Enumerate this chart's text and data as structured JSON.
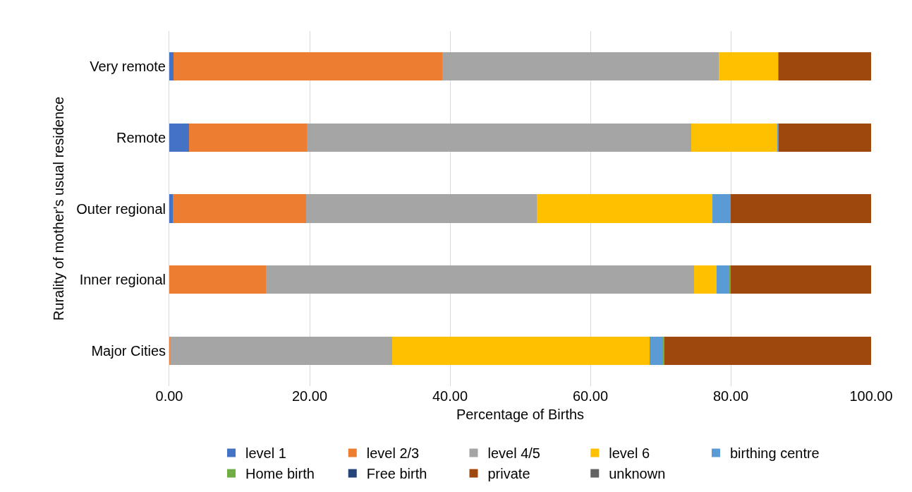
{
  "chart_data": {
    "type": "bar",
    "orientation": "horizontal",
    "stacked": true,
    "xlabel": "Percentage of Births",
    "ylabel": "Rurality of mother's usual residence",
    "categories": [
      "Very remote",
      "Remote",
      "Outer regional",
      "Inner regional",
      "Major Cities"
    ],
    "series": [
      {
        "name": "level 1",
        "color": "#4472c4",
        "values": [
          0.6,
          2.8,
          0.5,
          0,
          0
        ]
      },
      {
        "name": "level 2/3",
        "color": "#ed7d31",
        "values": [
          38.3,
          16.8,
          19.0,
          13.8,
          0.1
        ]
      },
      {
        "name": "level 4/5",
        "color": "#a5a5a5",
        "values": [
          39.4,
          54.8,
          32.9,
          61.0,
          31.7
        ]
      },
      {
        "name": "level 6",
        "color": "#ffc000",
        "values": [
          8.4,
          12.2,
          25.0,
          3.2,
          36.6
        ]
      },
      {
        "name": "birthing centre",
        "color": "#5b9bd5",
        "values": [
          0.1,
          0.2,
          2.6,
          1.8,
          2.0
        ]
      },
      {
        "name": "Home birth",
        "color": "#70ad47",
        "values": [
          0,
          0,
          0,
          0.2,
          0.2
        ]
      },
      {
        "name": "Free birth",
        "color": "#264478",
        "values": [
          0,
          0,
          0,
          0,
          0
        ]
      },
      {
        "name": "private",
        "color": "#9e480e",
        "values": [
          13.2,
          13.2,
          20.0,
          20.0,
          29.4
        ]
      },
      {
        "name": "unknown",
        "color": "#636363",
        "values": [
          0,
          0,
          0,
          0,
          0
        ]
      }
    ],
    "xlim": [
      0,
      100
    ],
    "xticks": [
      {
        "value": 0,
        "label": "0.00"
      },
      {
        "value": 20,
        "label": "20.00"
      },
      {
        "value": 40,
        "label": "40.00"
      },
      {
        "value": 60,
        "label": "60.00"
      },
      {
        "value": 80,
        "label": "80.00"
      },
      {
        "value": 100,
        "label": "100.00"
      }
    ],
    "grid": "x",
    "legend": "bottom"
  }
}
